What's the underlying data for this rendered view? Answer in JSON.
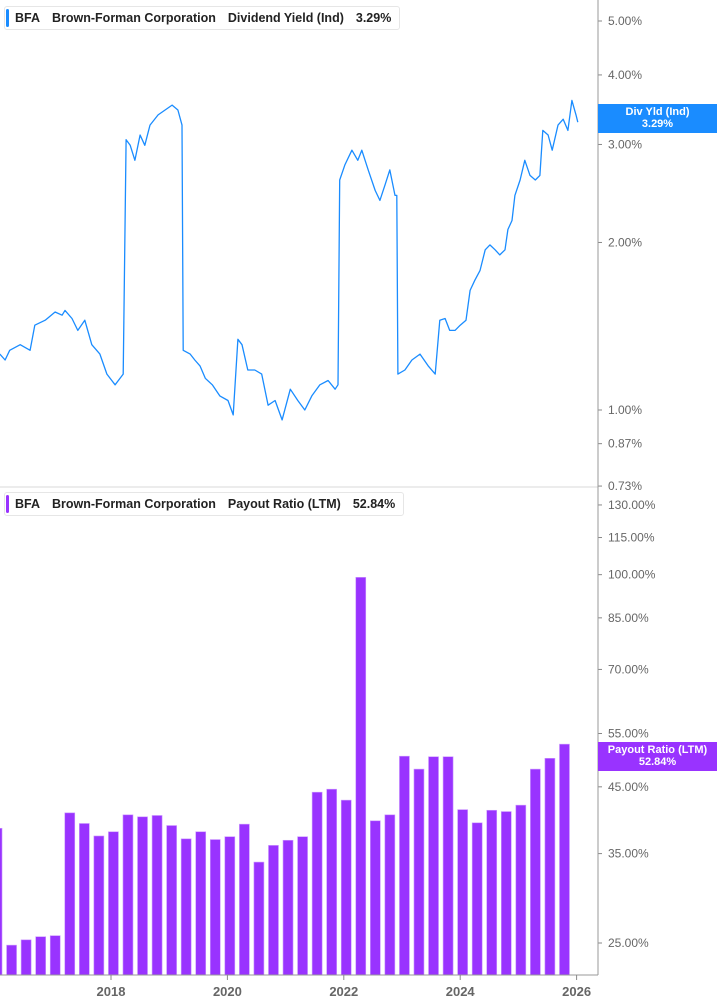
{
  "colors": {
    "yield": "#1a8cff",
    "payout": "#9933ff",
    "axis": "#999999",
    "text": "#666666"
  },
  "legend_top": {
    "ticker": "BFA",
    "company": "Brown-Forman Corporation",
    "metric": "Dividend Yield (Ind)",
    "value": "3.29%"
  },
  "legend_bottom": {
    "ticker": "BFA",
    "company": "Brown-Forman Corporation",
    "metric": "Payout Ratio (LTM)",
    "value": "52.84%"
  },
  "marker_top": {
    "label": "Div Yld (Ind)",
    "value": "3.29%"
  },
  "marker_bottom": {
    "label": "Payout Ratio (LTM)",
    "value": "52.84%"
  },
  "chart_data": [
    {
      "type": "line",
      "series": [
        {
          "name": "Dividend Yield (Ind)",
          "unit": "%",
          "x": [
            2016.09,
            2016.18,
            2016.26,
            2016.44,
            2016.61,
            2016.69,
            2016.87,
            2017.04,
            2017.16,
            2017.21,
            2017.33,
            2017.43,
            2017.55,
            2017.67,
            2017.81,
            2017.93,
            2018.07,
            2018.21,
            2018.26,
            2018.33,
            2018.41,
            2018.5,
            2018.58,
            2018.67,
            2018.81,
            2018.93,
            2019.05,
            2019.15,
            2019.22,
            2019.24,
            2019.36,
            2019.44,
            2019.53,
            2019.62,
            2019.74,
            2019.87,
            2020.01,
            2020.1,
            2020.18,
            2020.25,
            2020.35,
            2020.47,
            2020.59,
            2020.7,
            2020.82,
            2020.94,
            2021.08,
            2021.21,
            2021.33,
            2021.45,
            2021.59,
            2021.73,
            2021.85,
            2021.9,
            2021.93,
            2022.02,
            2022.14,
            2022.24,
            2022.31,
            2022.42,
            2022.54,
            2022.62,
            2022.71,
            2022.79,
            2022.88,
            2022.91,
            2022.93,
            2023.05,
            2023.17,
            2023.31,
            2023.45,
            2023.57,
            2023.65,
            2023.74,
            2023.82,
            2023.91,
            2024.0,
            2024.1,
            2024.17,
            2024.25,
            2024.34,
            2024.43,
            2024.51,
            2024.6,
            2024.68,
            2024.77,
            2024.82,
            2024.89,
            2024.94,
            2025.03,
            2025.11,
            2025.2,
            2025.29,
            2025.37,
            2025.42,
            2025.51,
            2025.58,
            2025.68,
            2025.77,
            2025.85,
            2025.92,
            2025.99,
            2026.02
          ],
          "y": [
            1.26,
            1.23,
            1.28,
            1.31,
            1.28,
            1.42,
            1.45,
            1.5,
            1.48,
            1.51,
            1.46,
            1.39,
            1.45,
            1.31,
            1.26,
            1.16,
            1.11,
            1.16,
            3.06,
            2.99,
            2.81,
            3.12,
            2.99,
            3.25,
            3.39,
            3.46,
            3.53,
            3.46,
            3.25,
            1.28,
            1.26,
            1.23,
            1.2,
            1.14,
            1.11,
            1.06,
            1.04,
            0.98,
            1.34,
            1.31,
            1.18,
            1.18,
            1.16,
            1.02,
            1.04,
            0.96,
            1.09,
            1.04,
            1.0,
            1.06,
            1.11,
            1.13,
            1.09,
            1.11,
            2.59,
            2.76,
            2.93,
            2.81,
            2.93,
            2.7,
            2.48,
            2.38,
            2.54,
            2.7,
            2.43,
            2.43,
            1.16,
            1.18,
            1.23,
            1.26,
            1.2,
            1.16,
            1.45,
            1.46,
            1.39,
            1.39,
            1.42,
            1.45,
            1.64,
            1.71,
            1.78,
            1.94,
            1.98,
            1.94,
            1.9,
            1.94,
            2.11,
            2.19,
            2.43,
            2.59,
            2.81,
            2.64,
            2.59,
            2.64,
            3.18,
            3.12,
            2.93,
            3.25,
            3.33,
            3.18,
            3.6,
            3.39,
            3.29
          ]
        }
      ],
      "y_scale": "log",
      "ylim": [
        0.73,
        5.3
      ],
      "y_ticks": [
        "5.00%",
        "4.00%",
        "3.00%",
        "2.00%",
        "1.00%",
        "0.87%",
        "0.73%"
      ],
      "y_tick_values": [
        5,
        4,
        3,
        2,
        1,
        0.87,
        0.73
      ],
      "legend": "top-left"
    },
    {
      "type": "bar",
      "categories": [
        "2016-01",
        "2016-04",
        "2016-07",
        "2016-10",
        "2017-01",
        "2017-04",
        "2017-07",
        "2017-10",
        "2018-01",
        "2018-04",
        "2018-07",
        "2018-10",
        "2019-01",
        "2019-04",
        "2019-07",
        "2019-10",
        "2020-01",
        "2020-04",
        "2020-07",
        "2020-10",
        "2021-01",
        "2021-04",
        "2021-07",
        "2021-10",
        "2022-01",
        "2022-04",
        "2022-07",
        "2022-10",
        "2023-01",
        "2023-04",
        "2023-07",
        "2023-10",
        "2024-01",
        "2024-04",
        "2024-07",
        "2024-10",
        "2025-01",
        "2025-04",
        "2025-07",
        "2025-10"
      ],
      "series": [
        {
          "name": "Payout Ratio (LTM)",
          "unit": "%",
          "values": [
            38.5,
            24.8,
            25.3,
            25.6,
            25.7,
            40.8,
            39.2,
            37.4,
            38.0,
            40.5,
            40.2,
            40.4,
            38.9,
            37.0,
            38.0,
            36.9,
            37.3,
            39.1,
            33.9,
            36.1,
            36.8,
            37.3,
            44.1,
            44.6,
            42.8,
            99.0,
            39.6,
            40.5,
            50.5,
            48.1,
            50.4,
            50.4,
            41.3,
            39.3,
            41.2,
            41.0,
            42.0,
            48.1,
            50.1,
            52.84
          ]
        }
      ],
      "y_scale": "log",
      "ylim": [
        22,
        135
      ],
      "y_ticks": [
        "130.00%",
        "115.00%",
        "100.00%",
        "85.00%",
        "70.00%",
        "55.00%",
        "45.00%",
        "35.00%",
        "25.00%"
      ],
      "y_tick_values": [
        130,
        115,
        100,
        85,
        70,
        55,
        45,
        35,
        25
      ],
      "x_ticks": [
        "2018",
        "2020",
        "2022",
        "2024",
        "2026"
      ],
      "x_tick_values": [
        2018,
        2020,
        2022,
        2024,
        2026
      ],
      "legend": "top-left"
    }
  ]
}
